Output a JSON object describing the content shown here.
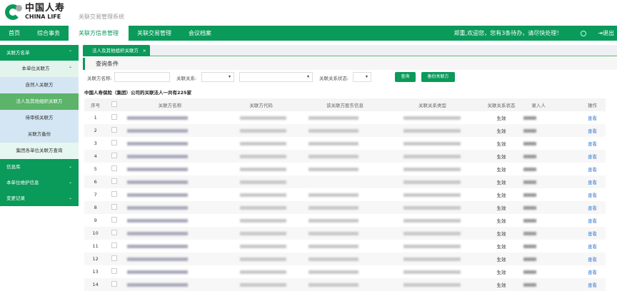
{
  "header": {
    "logo_cn": "中国人寿",
    "logo_en": "CHINA LIFE",
    "system_title": "关联交易管理系统"
  },
  "nav": {
    "items": [
      "首页",
      "综合事务",
      "关联方信息管理",
      "关联交易管理",
      "会议档案"
    ],
    "active": "关联方信息管理",
    "welcome": "郑重,欢迎您，您有3条待办，请尽快处理！",
    "logout": "退出"
  },
  "sidebar": {
    "group1": "关联方名单",
    "sub1": "本单位关联方",
    "items": [
      "自然人关联方",
      "法人及其他组织关联方",
      "待审核关联方",
      "关联方备份"
    ],
    "active": "法人及其他组织关联方",
    "group_query": "集团各单位关联方查询",
    "group2": "信息库",
    "group3": "本单位维护信息",
    "group4": "变更记录"
  },
  "tab": {
    "label": "法人及其他组织关联方",
    "close": "×"
  },
  "query": {
    "title": "查询条件",
    "name_label": "关联方名称:",
    "name_value": "",
    "relation_label": "关联关系:",
    "relation_value": "",
    "relation_sub_value": "",
    "status_label": "关联关系状态:",
    "status_value": "",
    "search_btn": "查询",
    "backup_btn": "备份关联方"
  },
  "summary": "中国人寿保险（集团）公司的关联法人一共有225家",
  "table": {
    "columns": [
      "序号",
      "",
      "关联方名称",
      "关联方代码",
      "该关联方股东信息",
      "关联关系类型",
      "关联关系状态",
      "录入人",
      "操作"
    ],
    "rows": [
      {
        "seq": "1",
        "status": "生效",
        "action": "查看"
      },
      {
        "seq": "2",
        "status": "生效",
        "action": "查看"
      },
      {
        "seq": "3",
        "status": "生效",
        "action": "查看"
      },
      {
        "seq": "4",
        "status": "生效",
        "action": "查看"
      },
      {
        "seq": "5",
        "status": "生效",
        "action": "查看"
      },
      {
        "seq": "6",
        "status": "生效",
        "action": "查看"
      },
      {
        "seq": "7",
        "status": "生效",
        "action": "查看"
      },
      {
        "seq": "8",
        "status": "生效",
        "action": "查看"
      },
      {
        "seq": "9",
        "status": "生效",
        "action": "查看"
      },
      {
        "seq": "10",
        "status": "生效",
        "action": "查看"
      },
      {
        "seq": "11",
        "status": "生效",
        "action": "查看"
      },
      {
        "seq": "12",
        "status": "生效",
        "action": "查看"
      },
      {
        "seq": "13",
        "status": "生效",
        "action": "查看"
      },
      {
        "seq": "14",
        "status": "生效",
        "action": "查看"
      }
    ]
  },
  "colors": {
    "brand": "#0a9a5a",
    "active_side": "#5cb36a",
    "link": "#3a7bd5"
  }
}
